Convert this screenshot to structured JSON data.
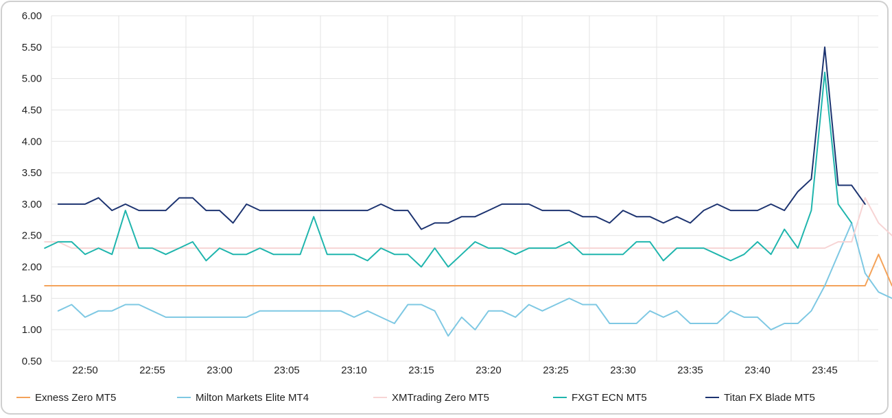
{
  "chart_data": {
    "type": "line",
    "title": "",
    "xlabel": "",
    "ylabel": "",
    "ylim": [
      0.5,
      6.0
    ],
    "y_ticks": [
      "6.00",
      "5.50",
      "5.00",
      "4.50",
      "4.00",
      "3.50",
      "3.00",
      "2.50",
      "2.00",
      "1.50",
      "1.00",
      "0.50"
    ],
    "x_tick_labels": [
      "22:50",
      "22:55",
      "23:00",
      "23:05",
      "23:10",
      "23:15",
      "23:20",
      "23:25",
      "23:30",
      "23:35",
      "23:40",
      "23:45"
    ],
    "x_start": "22:47",
    "x_step_minutes": 1,
    "grid": true,
    "legend_position": "bottom",
    "series": [
      {
        "name": "Exness Zero MT5",
        "color": "#f4a259",
        "values": [
          1.7,
          1.7,
          1.7,
          1.7,
          1.7,
          1.7,
          1.7,
          1.7,
          1.7,
          1.7,
          1.7,
          1.7,
          1.7,
          1.7,
          1.7,
          1.7,
          1.7,
          1.7,
          1.7,
          1.7,
          1.7,
          1.7,
          1.7,
          1.7,
          1.7,
          1.7,
          1.7,
          1.7,
          1.7,
          1.7,
          1.7,
          1.7,
          1.7,
          1.7,
          1.7,
          1.7,
          1.7,
          1.7,
          1.7,
          1.7,
          1.7,
          1.7,
          1.7,
          1.7,
          1.7,
          1.7,
          1.7,
          1.7,
          1.7,
          1.7,
          1.7,
          1.7,
          1.7,
          1.7,
          1.7,
          1.7,
          1.7,
          1.7,
          1.7,
          1.7,
          1.7,
          1.7,
          2.2,
          1.7,
          1.7,
          1.7
        ]
      },
      {
        "name": "Milton Markets Elite MT4",
        "color": "#7ec8e3",
        "values": [
          null,
          1.3,
          1.4,
          1.2,
          1.3,
          1.3,
          1.4,
          1.4,
          1.3,
          1.2,
          1.2,
          1.2,
          1.2,
          1.2,
          1.2,
          1.2,
          1.3,
          1.3,
          1.3,
          1.3,
          1.3,
          1.3,
          1.3,
          1.2,
          1.3,
          1.2,
          1.1,
          1.4,
          1.4,
          1.3,
          0.9,
          1.2,
          1.0,
          1.3,
          1.3,
          1.2,
          1.4,
          1.3,
          1.4,
          1.5,
          1.4,
          1.4,
          1.1,
          1.1,
          1.1,
          1.3,
          1.2,
          1.3,
          1.1,
          1.1,
          1.1,
          1.3,
          1.2,
          1.2,
          1.0,
          1.1,
          1.1,
          1.3,
          1.7,
          2.2,
          2.7,
          1.9,
          1.6,
          1.5
        ]
      },
      {
        "name": "XMTrading Zero MT5",
        "color": "#f7d4d4",
        "values": [
          2.4,
          2.4,
          2.3,
          2.3,
          2.3,
          2.3,
          2.3,
          2.3,
          2.3,
          2.3,
          2.3,
          2.3,
          2.3,
          2.3,
          2.3,
          2.3,
          2.3,
          2.3,
          2.3,
          2.3,
          2.3,
          2.3,
          2.3,
          2.3,
          2.3,
          2.3,
          2.3,
          2.3,
          2.3,
          2.3,
          2.3,
          2.3,
          2.3,
          2.3,
          2.3,
          2.3,
          2.3,
          2.3,
          2.3,
          2.3,
          2.3,
          2.3,
          2.3,
          2.3,
          2.3,
          2.3,
          2.3,
          2.3,
          2.3,
          2.3,
          2.3,
          2.3,
          2.3,
          2.3,
          2.3,
          2.3,
          2.3,
          2.3,
          2.3,
          2.4,
          2.4,
          3.1,
          2.7,
          2.5
        ]
      },
      {
        "name": "FXGT ECN MT5",
        "color": "#1fb5ad",
        "values": [
          2.3,
          2.4,
          2.4,
          2.2,
          2.3,
          2.2,
          2.9,
          2.3,
          2.3,
          2.2,
          2.3,
          2.4,
          2.1,
          2.3,
          2.2,
          2.2,
          2.3,
          2.2,
          2.2,
          2.2,
          2.8,
          2.2,
          2.2,
          2.2,
          2.1,
          2.3,
          2.2,
          2.2,
          2.0,
          2.3,
          2.0,
          2.2,
          2.4,
          2.3,
          2.3,
          2.2,
          2.3,
          2.3,
          2.3,
          2.4,
          2.2,
          2.2,
          2.2,
          2.2,
          2.4,
          2.4,
          2.1,
          2.3,
          2.3,
          2.3,
          2.2,
          2.1,
          2.2,
          2.4,
          2.2,
          2.6,
          2.3,
          2.9,
          5.1,
          3.0,
          2.7
        ]
      },
      {
        "name": "Titan FX Blade MT5",
        "color": "#1c3370",
        "values": [
          null,
          3.0,
          3.0,
          3.0,
          3.1,
          2.9,
          3.0,
          2.9,
          2.9,
          2.9,
          3.1,
          3.1,
          2.9,
          2.9,
          2.7,
          3.0,
          2.9,
          2.9,
          2.9,
          2.9,
          2.9,
          2.9,
          2.9,
          2.9,
          2.9,
          3.0,
          2.9,
          2.9,
          2.6,
          2.7,
          2.7,
          2.8,
          2.8,
          2.9,
          3.0,
          3.0,
          3.0,
          2.9,
          2.9,
          2.9,
          2.8,
          2.8,
          2.7,
          2.9,
          2.8,
          2.8,
          2.7,
          2.8,
          2.7,
          2.9,
          3.0,
          2.9,
          2.9,
          2.9,
          3.0,
          2.9,
          3.2,
          3.4,
          5.5,
          3.3,
          3.3,
          3.0
        ]
      }
    ]
  }
}
